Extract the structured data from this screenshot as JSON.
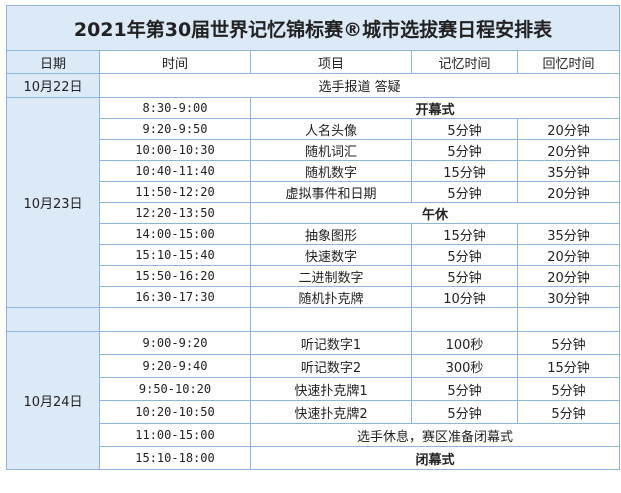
{
  "title": "2021年第30届世界记忆锦标赛®城市选拔赛日程安排表",
  "headers": [
    "日期",
    "时间",
    "项目",
    "记忆时间",
    "回忆时间"
  ],
  "day1": {
    "date": "10月22日",
    "event": "选手报道 答疑"
  },
  "day2": {
    "date": "10月23日",
    "rows": [
      {
        "time": "8:30-9:00",
        "event": "开幕式",
        "span": true,
        "bold": true
      },
      {
        "time": "9:20-9:50",
        "event": "人名头像",
        "mem": "5分钟",
        "rec": "20分钟"
      },
      {
        "time": "10:00-10:30",
        "event": "随机词汇",
        "mem": "5分钟",
        "rec": "20分钟"
      },
      {
        "time": "10:40-11:40",
        "event": "随机数字",
        "mem": "15分钟",
        "rec": "35分钟"
      },
      {
        "time": "11:50-12:20",
        "event": "虚拟事件和日期",
        "mem": "5分钟",
        "rec": "20分钟"
      },
      {
        "time": "12:20-13:50",
        "event": "午休",
        "span": true,
        "bold": true
      },
      {
        "time": "14:00-15:00",
        "event": "抽象图形",
        "mem": "15分钟",
        "rec": "35分钟"
      },
      {
        "time": "15:10-15:40",
        "event": "快速数字",
        "mem": "5分钟",
        "rec": "20分钟"
      },
      {
        "time": "15:50-16:20",
        "event": "二进制数字",
        "mem": "5分钟",
        "rec": "20分钟"
      },
      {
        "time": "16:30-17:30",
        "event": "随机扑克牌",
        "mem": "10分钟",
        "rec": "30分钟"
      }
    ]
  },
  "day3": {
    "date": "10月24日",
    "rows": [
      {
        "time": "9:00-9:20",
        "event": "听记数字1",
        "mem": "100秒",
        "rec": "5分钟"
      },
      {
        "time": "9:20-9:40",
        "event": "听记数字2",
        "mem": "300秒",
        "rec": "15分钟"
      },
      {
        "time": "9:50-10:20",
        "event": "快速扑克牌1",
        "mem": "5分钟",
        "rec": "5分钟"
      },
      {
        "time": "10:20-10:50",
        "event": "快速扑克牌2",
        "mem": "5分钟",
        "rec": "5分钟"
      },
      {
        "time": "11:00-15:00",
        "event": "选手休息，赛区准备闭幕式",
        "span": true
      },
      {
        "time": "15:10-18:00",
        "event": "闭幕式",
        "span": true,
        "bold": true
      }
    ]
  }
}
